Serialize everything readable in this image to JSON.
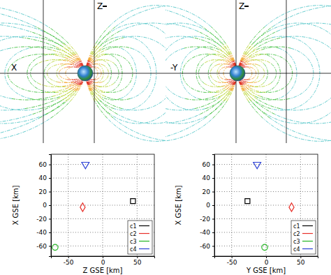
{
  "field_line_panels": [
    {
      "horizontal_axis": "X",
      "vertical_axis": "Z"
    },
    {
      "horizontal_axis": "-Y",
      "vertical_axis": "Z"
    }
  ],
  "chart_data": [
    {
      "type": "scatter",
      "x_label": "Z GSE [km]",
      "y_label": "X GSE [km]",
      "xlim": [
        -75,
        75
      ],
      "ylim": [
        -75,
        75
      ],
      "xticks": [
        -50,
        0,
        50
      ],
      "yticks": [
        -60,
        -40,
        -20,
        0,
        20,
        40,
        60
      ],
      "grid": true,
      "legend": "lower right",
      "series": [
        {
          "name": "c1",
          "color": "#000000",
          "marker": "square",
          "x": [
            44
          ],
          "values": [
            6
          ]
        },
        {
          "name": "c2",
          "color": "#e8302a",
          "marker": "diamond",
          "x": [
            -29
          ],
          "values": [
            -3
          ]
        },
        {
          "name": "c3",
          "color": "#22b422",
          "marker": "circle",
          "x": [
            -69
          ],
          "values": [
            -62
          ]
        },
        {
          "name": "c4",
          "color": "#2a3fd6",
          "marker": "triangle-down",
          "x": [
            -25
          ],
          "values": [
            60
          ]
        }
      ]
    },
    {
      "type": "scatter",
      "x_label": "Y GSE [km]",
      "y_label": "X GSE [km]",
      "xlim": [
        -75,
        75
      ],
      "ylim": [
        -75,
        75
      ],
      "xticks": [
        -50,
        0,
        50
      ],
      "yticks": [
        -60,
        -40,
        -20,
        0,
        20,
        40,
        60
      ],
      "grid": true,
      "legend": "lower right",
      "series": [
        {
          "name": "c1",
          "color": "#000000",
          "marker": "square",
          "x": [
            -27
          ],
          "values": [
            6
          ]
        },
        {
          "name": "c2",
          "color": "#e8302a",
          "marker": "diamond",
          "x": [
            37
          ],
          "values": [
            -3
          ]
        },
        {
          "name": "c3",
          "color": "#22b422",
          "marker": "circle",
          "x": [
            -2
          ],
          "values": [
            -62
          ]
        },
        {
          "name": "c4",
          "color": "#2a3fd6",
          "marker": "triangle-down",
          "x": [
            -13
          ],
          "values": [
            60
          ]
        }
      ]
    }
  ]
}
